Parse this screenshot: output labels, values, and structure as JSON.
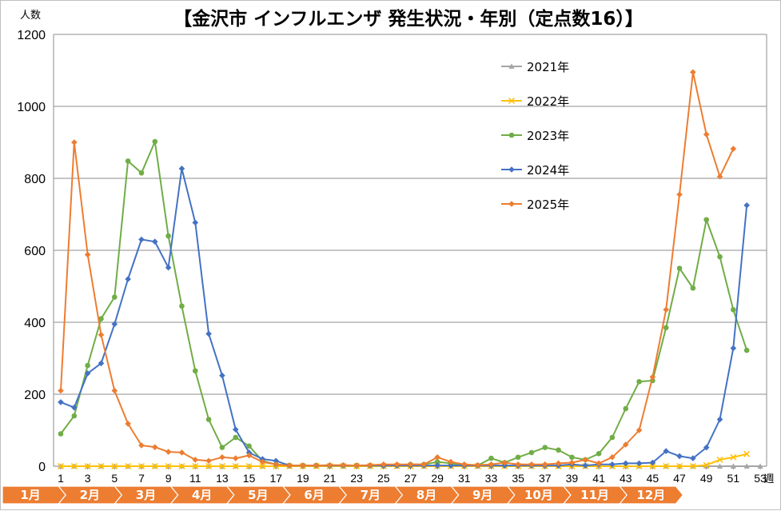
{
  "chart_data": {
    "type": "line",
    "title": "【金沢市 インフルエンザ 発生状況・年別（定点数16）】",
    "ylabel": "人数",
    "xlabel": "週",
    "ylim": [
      0,
      1200
    ],
    "yticks": [
      "0",
      "200",
      "400",
      "600",
      "800",
      "1000",
      "1200"
    ],
    "xlim": [
      1,
      53
    ],
    "xticks": [
      "1",
      "3",
      "5",
      "7",
      "9",
      "11",
      "13",
      "15",
      "17",
      "19",
      "21",
      "23",
      "25",
      "27",
      "29",
      "31",
      "33",
      "35",
      "37",
      "39",
      "41",
      "43",
      "45",
      "47",
      "49",
      "51",
      "53"
    ],
    "grid": true,
    "legend_position": "top-right",
    "months": [
      "1月",
      "2月",
      "3月",
      "4月",
      "5月",
      "6月",
      "7月",
      "8月",
      "9月",
      "10月",
      "11月",
      "12月"
    ],
    "series": [
      {
        "name": "2021年",
        "color": "#a5a5a5",
        "marker": "triangle",
        "values": [
          0,
          0,
          0,
          0,
          0,
          0,
          0,
          0,
          0,
          0,
          0,
          0,
          0,
          0,
          0,
          0,
          0,
          0,
          0,
          0,
          0,
          0,
          0,
          0,
          0,
          0,
          0,
          0,
          0,
          0,
          0,
          0,
          0,
          0,
          0,
          0,
          0,
          0,
          0,
          0,
          0,
          0,
          0,
          0,
          0,
          0,
          0,
          0,
          0,
          0,
          0,
          0,
          0
        ]
      },
      {
        "name": "2022年",
        "color": "#ffc000",
        "marker": "x",
        "values": [
          0,
          0,
          0,
          0,
          0,
          0,
          0,
          0,
          0,
          0,
          0,
          0,
          0,
          0,
          0,
          0,
          0,
          0,
          0,
          0,
          0,
          0,
          0,
          0,
          0,
          0,
          0,
          0,
          0,
          0,
          0,
          0,
          0,
          0,
          0,
          0,
          0,
          0,
          0,
          0,
          0,
          0,
          0,
          0,
          0,
          0,
          0,
          0,
          3,
          18,
          25,
          34
        ]
      },
      {
        "name": "2023年",
        "color": "#70ad47",
        "marker": "circle",
        "values": [
          90,
          140,
          280,
          410,
          470,
          848,
          815,
          902,
          640,
          445,
          265,
          130,
          52,
          80,
          56,
          15,
          5,
          2,
          2,
          2,
          2,
          2,
          2,
          2,
          2,
          3,
          5,
          5,
          12,
          8,
          3,
          2,
          22,
          10,
          25,
          38,
          52,
          45,
          25,
          18,
          35,
          80,
          160,
          235,
          238,
          385,
          550,
          495,
          685,
          582,
          435,
          322
        ]
      },
      {
        "name": "2024年",
        "color": "#4472c4",
        "marker": "diamond",
        "values": [
          178,
          163,
          258,
          286,
          395,
          520,
          630,
          624,
          552,
          827,
          677,
          368,
          252,
          102,
          38,
          20,
          15,
          2,
          2,
          2,
          2,
          2,
          2,
          2,
          2,
          2,
          2,
          2,
          2,
          2,
          2,
          2,
          2,
          2,
          2,
          2,
          2,
          2,
          5,
          2,
          5,
          5,
          8,
          8,
          10,
          42,
          28,
          22,
          52,
          130,
          328,
          725
        ]
      },
      {
        "name": "2025年",
        "color": "#ed7d31",
        "marker": "diamond",
        "values": [
          210,
          900,
          588,
          365,
          210,
          118,
          58,
          53,
          40,
          38,
          18,
          15,
          25,
          22,
          30,
          12,
          5,
          2,
          2,
          2,
          3,
          3,
          2,
          3,
          5,
          5,
          5,
          5,
          25,
          12,
          5,
          3,
          5,
          10,
          5,
          5,
          5,
          8,
          10,
          18,
          8,
          25,
          60,
          100,
          248,
          435,
          755,
          1095,
          922,
          805,
          882
        ]
      }
    ]
  }
}
